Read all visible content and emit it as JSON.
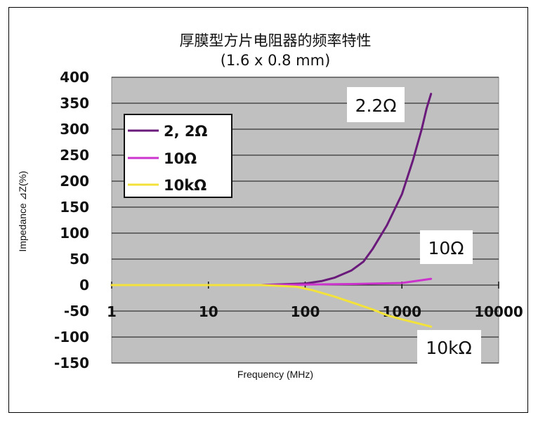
{
  "chart_data": {
    "type": "line",
    "title": "厚膜型方片电阻器的频率特性",
    "subtitle": "(1.6 x 0.8 mm)",
    "xlabel": "Frequency (MHz)",
    "ylabel": "Impedance ⊿Z(%)",
    "x_scale": "log",
    "xlim": [
      1,
      10000
    ],
    "ylim": [
      -150,
      400
    ],
    "x_ticks": [
      "1",
      "10",
      "100",
      "1000",
      "10000"
    ],
    "y_ticks": [
      "400",
      "350",
      "300",
      "250",
      "200",
      "150",
      "100",
      "50",
      "0",
      "-50",
      "-100",
      "-150"
    ],
    "grid": true,
    "legend_placement": "upper-left",
    "series": [
      {
        "name": "2, 2Ω",
        "color": "#6a1a7a",
        "points": [
          [
            1,
            0
          ],
          [
            10,
            0
          ],
          [
            35,
            0
          ],
          [
            100,
            3
          ],
          [
            150,
            8
          ],
          [
            200,
            14
          ],
          [
            300,
            28
          ],
          [
            400,
            45
          ],
          [
            500,
            70
          ],
          [
            700,
            115
          ],
          [
            1000,
            175
          ],
          [
            1300,
            240
          ],
          [
            1600,
            300
          ],
          [
            1800,
            340
          ],
          [
            2000,
            368
          ]
        ]
      },
      {
        "name": "10Ω",
        "color": "#cc33cc",
        "points": [
          [
            1,
            0
          ],
          [
            10,
            0
          ],
          [
            35,
            0
          ],
          [
            100,
            1
          ],
          [
            300,
            2
          ],
          [
            1000,
            4
          ],
          [
            2000,
            12
          ]
        ]
      },
      {
        "name": "10kΩ",
        "color": "#f2e23a",
        "points": [
          [
            1,
            0
          ],
          [
            10,
            0
          ],
          [
            35,
            0
          ],
          [
            80,
            -3
          ],
          [
            120,
            -10
          ],
          [
            200,
            -22
          ],
          [
            300,
            -33
          ],
          [
            500,
            -47
          ],
          [
            700,
            -58
          ],
          [
            1000,
            -66
          ],
          [
            1500,
            -74
          ],
          [
            2000,
            -80
          ]
        ]
      }
    ],
    "annotations": [
      "2.2Ω",
      "10Ω",
      "10kΩ"
    ]
  }
}
